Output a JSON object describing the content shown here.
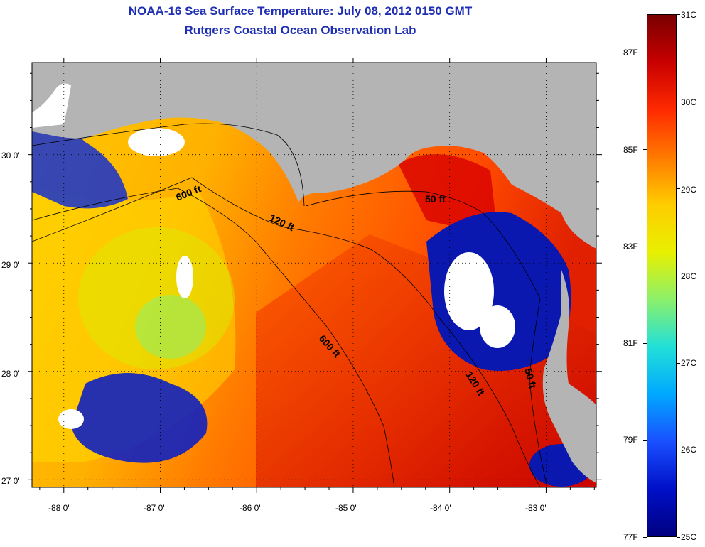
{
  "title": {
    "line1": "NOAA-16 Sea Surface Temperature:  July 08, 2012 0150 GMT",
    "line2": "Rutgers Coastal Ocean Observation Lab"
  },
  "colors": {
    "title": "#1f2fb4",
    "land": "#b4b4b4",
    "cloud": "#ffffff",
    "grid": "#000000"
  },
  "map": {
    "lon_range": [
      -88.33,
      -82.48
    ],
    "lat_range": [
      26.93,
      30.85
    ],
    "lon_ticks": [
      {
        "value": -88,
        "label": "-88 0'"
      },
      {
        "value": -87,
        "label": "-87 0'"
      },
      {
        "value": -86,
        "label": "-86 0'"
      },
      {
        "value": -85,
        "label": "-85 0'"
      },
      {
        "value": -84,
        "label": "-84 0'"
      },
      {
        "value": -83,
        "label": "-83 0'"
      }
    ],
    "lat_ticks": [
      {
        "value": 30,
        "label": "30 0'"
      },
      {
        "value": 29,
        "label": "29 0'"
      },
      {
        "value": 28,
        "label": "28 0'"
      },
      {
        "value": 27,
        "label": "27 0'"
      }
    ],
    "contour_labels": [
      "600 ft",
      "120 ft",
      "50 ft",
      "600 ft",
      "120 ft",
      "50 ft"
    ]
  },
  "colorbar": {
    "celsius_labels": [
      "31C",
      "30C",
      "29C",
      "28C",
      "27C",
      "26C",
      "25C"
    ],
    "fahrenheit_labels": [
      "87F",
      "85F",
      "83F",
      "81F",
      "79F",
      "77F"
    ],
    "stops": [
      "#7a0000",
      "#c80000",
      "#ff2a00",
      "#ff7a00",
      "#ffcc00",
      "#e8f000",
      "#8cf06a",
      "#22e0d8",
      "#00a8ff",
      "#1a50ff",
      "#0010c8",
      "#000080"
    ]
  }
}
